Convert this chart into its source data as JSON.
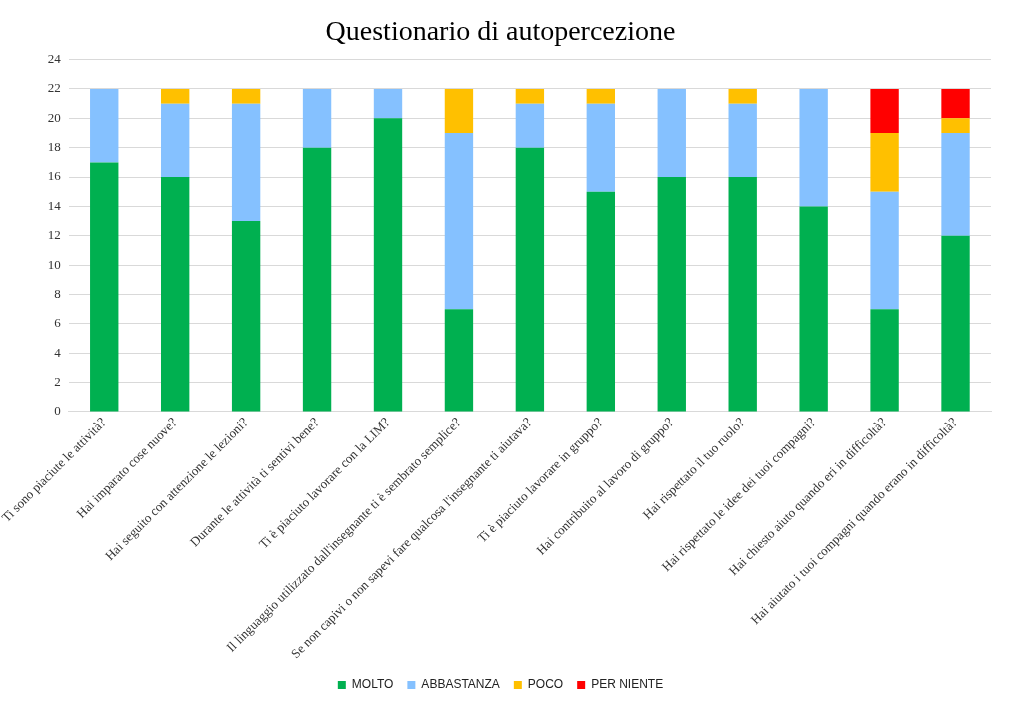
{
  "chart_data": {
    "type": "bar",
    "title": "Questionario di autopercezione",
    "stacked": true,
    "categories": [
      "Ti sono piaciute le attività?",
      "Hai imparato cose nuove?",
      "Hai seguito con attenzione le lezioni?",
      "Durante le attività ti sentivi bene?",
      "Ti è piaciuto lavorare con la LIM?",
      "Il linguaggio utilizzato dall'insegnante ti è sembrato semplice?",
      "Se non capivi o non sapevi fare qualcosa l'insegnante ti aiutava?",
      "Ti è piaciuto lavorare in gruppo?",
      "Hai contribuito al lavoro di gruppo?",
      "Hai rispettato il tuo ruolo?",
      "Hai rispettato le idee dei tuoi compagni?",
      "Hai chiesto aiuto quando eri in difficoltà?",
      "Hai aiutato i tuoi compagni quando erano in difficoltà?"
    ],
    "series": [
      {
        "name": "MOLTO",
        "color": "#00b050",
        "values": [
          17,
          16,
          13,
          18,
          20,
          7,
          18,
          15,
          16,
          16,
          14,
          7,
          12
        ]
      },
      {
        "name": "ABBASTANZA",
        "color": "#85c1ff",
        "values": [
          5,
          5,
          8,
          4,
          2,
          12,
          3,
          6,
          6,
          5,
          8,
          8,
          7
        ]
      },
      {
        "name": "POCO",
        "color": "#ffc000",
        "values": [
          null,
          1,
          1,
          null,
          null,
          3,
          1,
          1,
          null,
          1,
          null,
          4,
          1
        ]
      },
      {
        "name": "PER NIENTE",
        "color": "#ff0000",
        "values": [
          null,
          null,
          null,
          null,
          null,
          null,
          null,
          null,
          null,
          null,
          null,
          3,
          2
        ]
      }
    ],
    "ylim": [
      0,
      24
    ],
    "yticks": [
      0,
      2,
      4,
      6,
      8,
      10,
      12,
      14,
      16,
      18,
      20,
      22,
      24
    ],
    "grid": "y",
    "legend": "bottom"
  }
}
